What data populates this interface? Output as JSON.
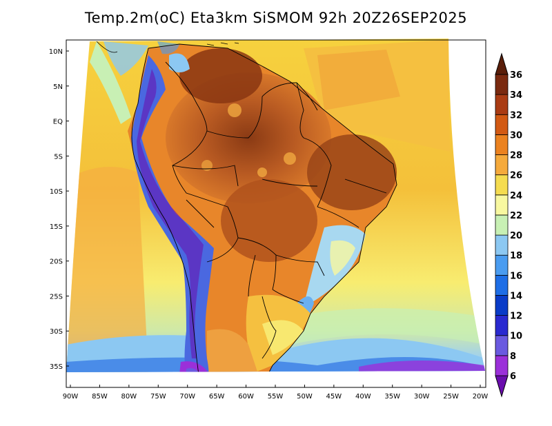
{
  "title": "Temp.2m(oC) Eta3km SiSMOM 92h 20Z26SEP2025",
  "map": {
    "variable": "Temperature at 2 m",
    "units": "oC",
    "model": "Eta3km",
    "forecast_hour": "92h",
    "valid_time": "20Z26SEP2025",
    "region": "South America",
    "lat_labels": [
      "10N",
      "5N",
      "EQ",
      "5S",
      "10S",
      "15S",
      "20S",
      "25S",
      "30S",
      "35S"
    ],
    "lat_values": [
      10,
      5,
      0,
      -5,
      -10,
      -15,
      -20,
      -25,
      -30,
      -35
    ],
    "lon_labels": [
      "90W",
      "85W",
      "80W",
      "75W",
      "70W",
      "65W",
      "60W",
      "55W",
      "50W",
      "45W",
      "40W",
      "35W",
      "30W",
      "25W",
      "20W"
    ],
    "lon_values": [
      -90,
      -85,
      -80,
      -75,
      -70,
      -65,
      -60,
      -55,
      -50,
      -45,
      -40,
      -35,
      -30,
      -25,
      -20
    ]
  },
  "colorbar": {
    "labels": [
      "6",
      "8",
      "10",
      "12",
      "14",
      "16",
      "18",
      "20",
      "22",
      "24",
      "26",
      "28",
      "30",
      "32",
      "34",
      "36"
    ],
    "colors": [
      "#6a0dad",
      "#9b30d9",
      "#6a5ae0",
      "#2a2ad0",
      "#0a3cc8",
      "#1e6ee6",
      "#4a9cf0",
      "#8cc8f2",
      "#c8f0b4",
      "#f8f8a0",
      "#f5dc50",
      "#f5aa3c",
      "#eb8220",
      "#d25a14",
      "#aa3c14",
      "#7a2a10",
      "#5a1e0a"
    ]
  }
}
